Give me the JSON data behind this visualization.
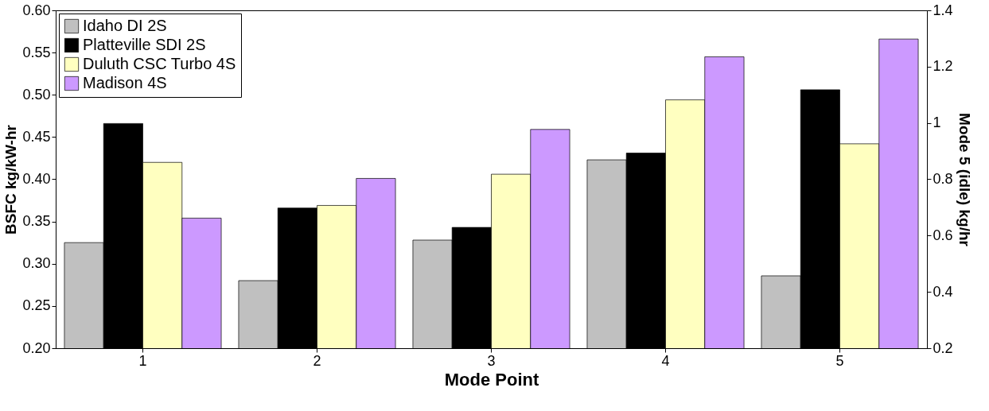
{
  "chart_data": {
    "type": "bar",
    "xlabel": "Mode Point",
    "ylabel": "BSFC kg/kW-hr",
    "y2label": "Mode 5 (idle) kg/hr",
    "categories": [
      "1",
      "2",
      "3",
      "4",
      "5"
    ],
    "series": [
      {
        "name": "Idaho DI 2S",
        "color": "#c0c0c0",
        "values": [
          0.325,
          0.28,
          0.328,
          0.423,
          null
        ]
      },
      {
        "name": "Platteville SDI 2S",
        "color": "#000000",
        "values": [
          0.466,
          0.366,
          0.343,
          0.431,
          null
        ]
      },
      {
        "name": "Duluth CSC Turbo 4S",
        "color": "#ffffc0",
        "values": [
          0.42,
          0.369,
          0.406,
          0.494,
          null
        ]
      },
      {
        "name": "Madison 4S",
        "color": "#cc99ff",
        "values": [
          0.354,
          0.401,
          0.459,
          0.545,
          null
        ]
      },
      {
        "color": "#c0c0c0",
        "axis": "y2",
        "values": [
          null,
          null,
          null,
          null,
          0.457
        ]
      },
      {
        "color": "#000000",
        "axis": "y2",
        "values": [
          null,
          null,
          null,
          null,
          1.118
        ]
      },
      {
        "color": "#ffffc0",
        "axis": "y2",
        "values": [
          null,
          null,
          null,
          null,
          0.926
        ]
      },
      {
        "color": "#cc99ff",
        "axis": "y2",
        "values": [
          null,
          null,
          null,
          null,
          1.298
        ]
      }
    ],
    "ylim": [
      0.2,
      0.6
    ],
    "yticks": [
      {
        "value": 0.2,
        "label": "0.20"
      },
      {
        "value": 0.25,
        "label": "0.25"
      },
      {
        "value": 0.3,
        "label": "0.30"
      },
      {
        "value": 0.35,
        "label": "0.35"
      },
      {
        "value": 0.4,
        "label": "0.40"
      },
      {
        "value": 0.45,
        "label": "0.45"
      },
      {
        "value": 0.5,
        "label": "0.50"
      },
      {
        "value": 0.55,
        "label": "0.55"
      },
      {
        "value": 0.6,
        "label": "0.60"
      }
    ],
    "y2lim": [
      0.2,
      1.4
    ],
    "y2ticks": [
      {
        "value": 0.2,
        "label": "0.2"
      },
      {
        "value": 0.4,
        "label": "0.4"
      },
      {
        "value": 0.6,
        "label": "0.6"
      },
      {
        "value": 0.8,
        "label": "0.8"
      },
      1,
      {
        "value": 1.2,
        "label": "1.2"
      },
      {
        "value": 1.4,
        "label": "1.4"
      }
    ],
    "legend": "top left",
    "grid": false
  }
}
